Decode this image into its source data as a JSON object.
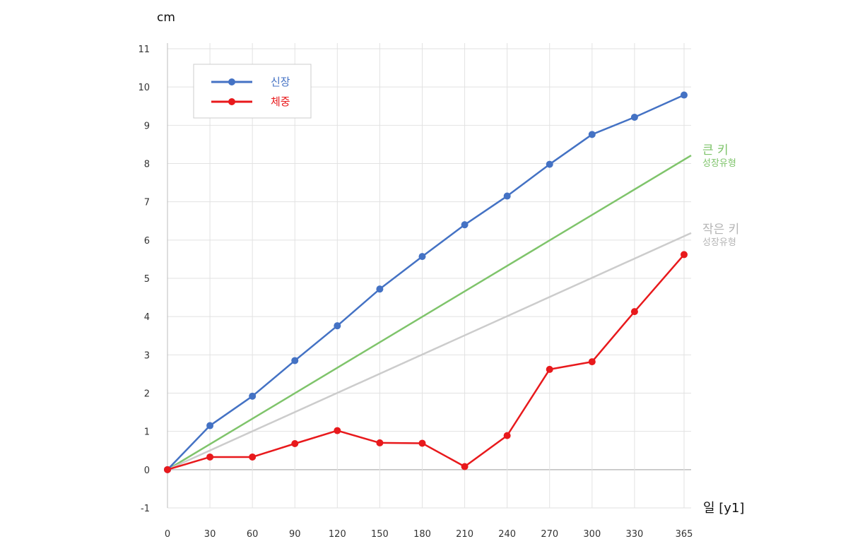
{
  "chart_data": {
    "type": "line",
    "x": [
      0,
      30,
      60,
      90,
      120,
      150,
      180,
      210,
      240,
      270,
      300,
      330,
      365
    ],
    "x_tick_labels": [
      "0",
      "30",
      "60",
      "90",
      "120",
      "150",
      "180",
      "210",
      "240",
      "270",
      "300",
      "330",
      "365"
    ],
    "y_ticks": [
      -1,
      0,
      1,
      2,
      3,
      4,
      5,
      6,
      7,
      8,
      9,
      10,
      11
    ],
    "ylim": [
      -1,
      11
    ],
    "ylabel": "cm",
    "xlabel": "일 [y1]",
    "grid": true,
    "legend_position": "top-left",
    "series": [
      {
        "name": "신장",
        "color": "#4472c4",
        "values": [
          0,
          1.15,
          1.92,
          2.85,
          3.76,
          4.72,
          5.57,
          6.4,
          7.15,
          7.98,
          8.76,
          9.21,
          9.79
        ]
      },
      {
        "name": "체중",
        "color": "#e8191c",
        "values": [
          0,
          0.33,
          0.33,
          0.68,
          1.02,
          0.7,
          0.69,
          0.08,
          0.89,
          2.62,
          2.82,
          4.13,
          5.62
        ]
      }
    ],
    "reference_lines": [
      {
        "label": "큰 키",
        "sublabel": "성장유형",
        "color": "#7fc46b",
        "from": [
          0,
          0
        ],
        "to": [
          365,
          8.1
        ]
      },
      {
        "label": "작은 키",
        "sublabel": "성장유형",
        "color": "#cccccc",
        "from": [
          0,
          0
        ],
        "to": [
          365,
          6.1
        ]
      }
    ]
  }
}
